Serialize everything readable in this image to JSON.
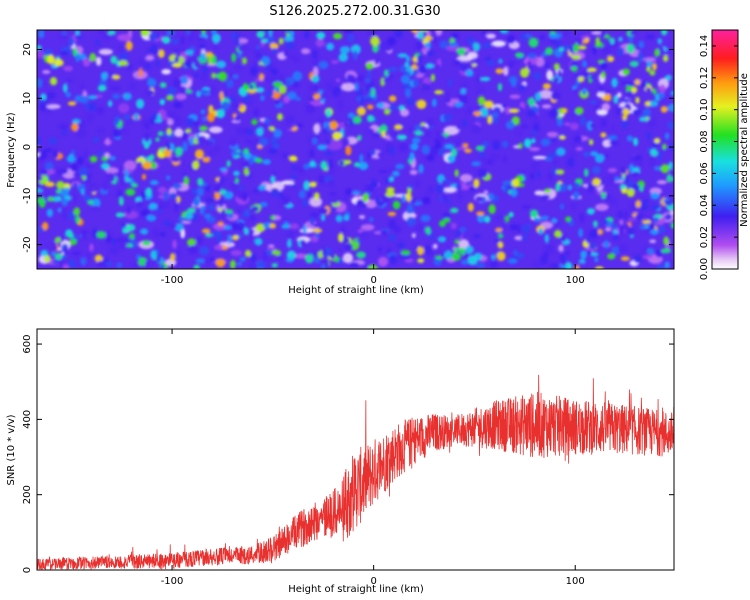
{
  "title": "S126.2025.272.00.31.G30",
  "colors": {
    "snr_line": "#e8312f",
    "frame": "#000000",
    "background": "#ffffff",
    "spectrogram_base": "#3f1ff0"
  },
  "chart_data": [
    {
      "type": "heatmap",
      "name": "spectrogram",
      "xlabel": "Height of straight line (km)",
      "ylabel": "Frequency (Hz)",
      "xlim": [
        -167,
        149
      ],
      "ylim": [
        -25,
        24
      ],
      "xticks": [
        -100,
        0,
        100
      ],
      "yticks": [
        20,
        10,
        0,
        -10,
        -20
      ],
      "colorbar": {
        "label": "Normalized spectral amplitude",
        "range": [
          0.0,
          0.15
        ],
        "ticks": [
          "0.00",
          "0.02",
          "0.04",
          "0.06",
          "0.08",
          "0.10",
          "0.12",
          "0.14"
        ],
        "ticks_values": [
          0.0,
          0.02,
          0.04,
          0.06,
          0.08,
          0.1,
          0.12,
          0.14
        ],
        "colormap": "rainbow (white-violet-blue-cyan-green-yellow-orange-red-magenta)"
      },
      "description_stats": {
        "typical_amplitude": 0.02,
        "peak_amplitude": 0.12
      }
    },
    {
      "type": "line",
      "name": "snr",
      "xlabel": "Height of straight line (km)",
      "ylabel": "SNR (10 * v/v)",
      "xlim": [
        -167,
        149
      ],
      "ylim": [
        0,
        640
      ],
      "xticks": [
        -100,
        0,
        100
      ],
      "yticks": [
        0,
        200,
        400,
        600
      ],
      "trend_x": [
        -167,
        -130,
        -100,
        -80,
        -60,
        -50,
        -40,
        -30,
        -20,
        -15,
        -10,
        -5,
        0,
        10,
        20,
        30,
        40,
        60,
        80,
        100,
        120,
        140,
        149
      ],
      "trend_y": [
        15,
        20,
        25,
        35,
        40,
        55,
        95,
        130,
        150,
        160,
        210,
        230,
        260,
        310,
        345,
        365,
        370,
        385,
        385,
        380,
        375,
        365,
        360
      ],
      "noise_x": [
        -167,
        -60,
        -40,
        -20,
        -10,
        0,
        40,
        80,
        100,
        149
      ],
      "noise_amp": [
        15,
        25,
        45,
        65,
        110,
        90,
        40,
        90,
        75,
        60
      ]
    }
  ]
}
